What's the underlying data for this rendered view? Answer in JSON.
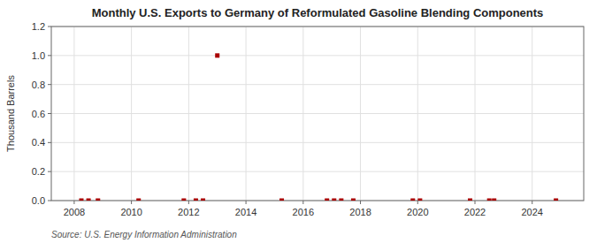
{
  "chart_data": {
    "type": "scatter",
    "title": "Monthly U.S. Exports to Germany of Reformulated Gasoline Blending Components",
    "y_label": "Thousand Barrels",
    "source": "Source: U.S. Energy Information Administration",
    "color": "#aa0000",
    "marker": "square",
    "grid": true,
    "x": [
      2008.25,
      2008.5,
      2008.83,
      2010.25,
      2011.83,
      2012.25,
      2012.5,
      2013.0,
      2015.25,
      2016.83,
      2017.08,
      2017.33,
      2017.75,
      2019.83,
      2020.08,
      2021.83,
      2022.5,
      2022.67,
      2024.83
    ],
    "values": [
      0.0,
      0.0,
      0.0,
      0.0,
      0.0,
      0.0,
      0.0,
      1.0,
      0.0,
      0.0,
      0.0,
      0.0,
      0.0,
      0.0,
      0.0,
      0.0,
      0.0,
      0.0,
      0.0
    ],
    "xlim": [
      2007.2,
      2025.8
    ],
    "ylim": [
      0.0,
      1.2
    ],
    "xticks": [
      2008,
      2010,
      2012,
      2014,
      2016,
      2018,
      2020,
      2022,
      2024
    ],
    "yticks": [
      {
        "value": 0.0,
        "label": "0.0"
      },
      0.2,
      0.4,
      0.6,
      0.8,
      {
        "value": 1.0,
        "label": "1.0"
      },
      1.2
    ]
  }
}
